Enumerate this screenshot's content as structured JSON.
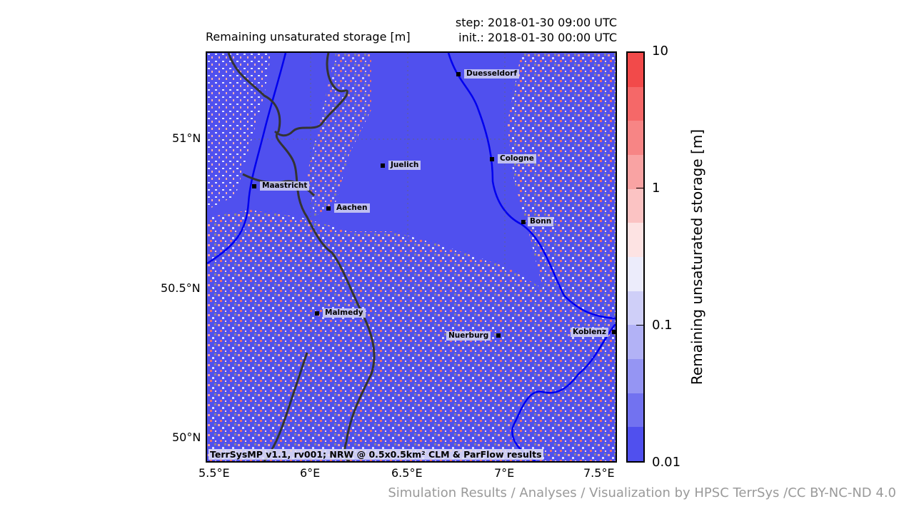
{
  "map": {
    "title": "Remaining unsaturated storage [m]",
    "step": "step: 2018-01-30 09:00 UTC",
    "init": "init.: 2018-01-30 00:00 UTC",
    "lat_ticks": [
      "51°N",
      "50.5°N",
      "50°N"
    ],
    "lon_ticks": [
      "5.5°E",
      "6°E",
      "6.5°E",
      "7°E",
      "7.5°E"
    ],
    "cities": [
      {
        "name": "Duesseldorf"
      },
      {
        "name": "Cologne"
      },
      {
        "name": "Juelich"
      },
      {
        "name": "Maastricht"
      },
      {
        "name": "Aachen"
      },
      {
        "name": "Bonn"
      },
      {
        "name": "Malmedy"
      },
      {
        "name": "Nuerburg"
      },
      {
        "name": "Koblenz"
      }
    ],
    "model_text": "TerrSysMP v1.1, rv001; NRW @ 0.5x0.5km² CLM & ParFlow results",
    "colors": {
      "water_blue": "#0000ee",
      "dry_blue": "#5050ee",
      "border": "#333333"
    }
  },
  "colorbar": {
    "label": "Remaining unsaturated storage [m]",
    "ticks": [
      "10",
      "1",
      "0.1",
      "0.01"
    ],
    "colors": [
      "#f24a4a",
      "#f56868",
      "#f78585",
      "#f9a3a3",
      "#fbc3c3",
      "#fde3e3",
      "#ececfb",
      "#cfcff8",
      "#b2b2f6",
      "#9595f3",
      "#7272f0",
      "#5050ee"
    ]
  },
  "credit": "Simulation Results / Analyses / Visualization by HPSC TerrSys /CC BY-NC-ND 4.0"
}
